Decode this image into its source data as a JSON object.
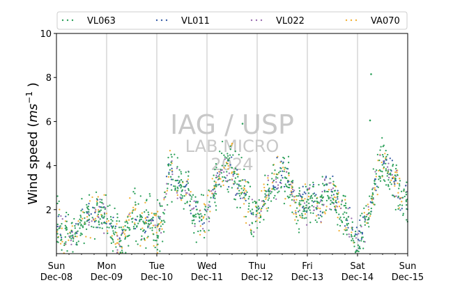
{
  "chart_data": {
    "type": "scatter",
    "ylabel_main": "Wind speed (",
    "ylabel_unit": "ms",
    "ylabel_exp": "−1",
    "ylabel_close": " )",
    "ylim": [
      0,
      10
    ],
    "yticks": [
      "2",
      "4",
      "6",
      "8",
      "10"
    ],
    "xlim": [
      "2024-12-08T00:00",
      "2024-12-15T00:00"
    ],
    "grid_x": true,
    "grid_y": false,
    "legend_position": "top",
    "x_ticks": [
      {
        "day": "Sun",
        "date": "Dec-08"
      },
      {
        "day": "Mon",
        "date": "Dec-09"
      },
      {
        "day": "Tue",
        "date": "Dec-10"
      },
      {
        "day": "Wed",
        "date": "Dec-11"
      },
      {
        "day": "Thu",
        "date": "Dec-12"
      },
      {
        "day": "Fri",
        "date": "Dec-13"
      },
      {
        "day": "Sat",
        "date": "Dec-14"
      },
      {
        "day": "Sun",
        "date": "Dec-15"
      }
    ],
    "series": [
      {
        "name": "VL063",
        "color": "#2ca05a"
      },
      {
        "name": "VL011",
        "color": "#3a5fa8"
      },
      {
        "name": "VL022",
        "color": "#9a6fb0"
      },
      {
        "name": "VA070",
        "color": "#f2b134"
      }
    ],
    "trend_hours": [
      0,
      3,
      6,
      9,
      12,
      15,
      18,
      21,
      24,
      27,
      30,
      33,
      36,
      39,
      42,
      45,
      48,
      51,
      54,
      57,
      60,
      63,
      66,
      69,
      72,
      75,
      78,
      81,
      84,
      87,
      90,
      93,
      96,
      99,
      102,
      105,
      108,
      111,
      114,
      117,
      120,
      123,
      126,
      129,
      132,
      135,
      138,
      141,
      144,
      147,
      150,
      153,
      156,
      159,
      162,
      165,
      168
    ],
    "trend_values": [
      1.5,
      1.0,
      0.8,
      0.9,
      1.4,
      1.7,
      1.8,
      2.0,
      1.6,
      1.0,
      0.6,
      0.7,
      2.0,
      1.6,
      1.2,
      1.6,
      0.9,
      1.6,
      4.0,
      3.2,
      2.9,
      3.0,
      1.8,
      1.5,
      2.0,
      2.9,
      3.6,
      4.0,
      3.8,
      3.2,
      2.8,
      1.8,
      1.6,
      2.5,
      3.0,
      3.4,
      3.6,
      3.2,
      2.4,
      2.0,
      2.2,
      2.4,
      2.0,
      2.9,
      3.0,
      2.0,
      1.6,
      1.2,
      0.6,
      1.2,
      2.0,
      3.6,
      4.2,
      3.8,
      3.2,
      2.4,
      2.6
    ],
    "outliers": [
      {
        "series": 0,
        "hour": 150.5,
        "value": 8.15
      },
      {
        "series": 0,
        "hour": 150.0,
        "value": 6.05
      },
      {
        "series": 0,
        "hour": 89.0,
        "value": 5.9
      },
      {
        "series": 3,
        "hour": 84.0,
        "value": 5.0
      }
    ]
  },
  "watermark": {
    "line1": "IAG / USP",
    "line2": "LAB MICRO",
    "line3": "2024"
  }
}
